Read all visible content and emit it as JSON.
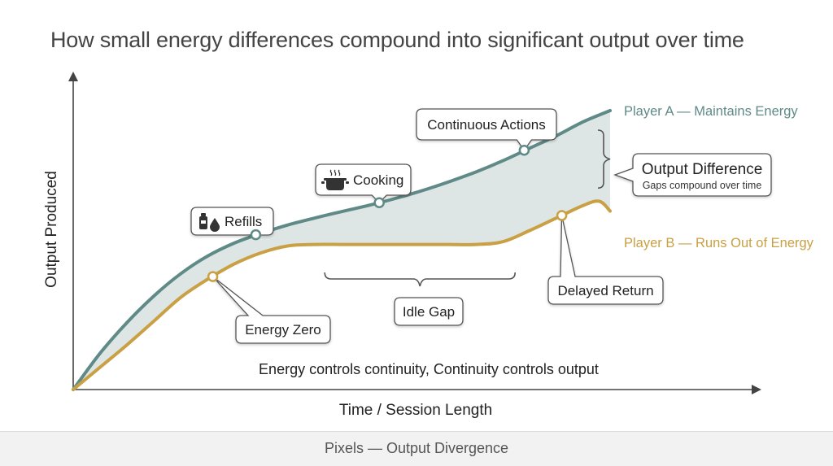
{
  "title": "How small energy differences compound into significant output over time",
  "caption": "Pixels — Output Divergence",
  "chart_data": {
    "type": "line",
    "title": "How small energy differences compound into significant output over time",
    "xlabel": "Time / Session Length",
    "ylabel": "Output Produced",
    "xlim": [
      0,
      100
    ],
    "ylim": [
      0,
      100
    ],
    "grid": false,
    "legend": "right, inline labels",
    "center_note": "Energy controls continuity, Continuity controls output",
    "series": [
      {
        "name": "Player A — Maintains Energy",
        "color": "#5f8a87",
        "x": [
          0,
          5,
          10,
          15,
          20,
          25,
          30,
          35,
          40,
          45,
          50,
          55,
          60,
          65,
          70,
          75,
          80,
          85,
          90,
          95,
          100
        ],
        "y": [
          0,
          13,
          24,
          33.5,
          41.5,
          47.8,
          52.5,
          56,
          59,
          61.5,
          63.8,
          66,
          68.5,
          71.3,
          74.5,
          78,
          82,
          86.5,
          91,
          96,
          100
        ]
      },
      {
        "name": "Player B — Runs Out of Energy",
        "color": "#c9a043",
        "x": [
          0,
          5,
          10,
          15,
          20,
          25,
          30,
          35,
          40,
          45,
          50,
          55,
          60,
          65,
          70,
          75,
          80,
          85,
          90,
          95,
          98,
          100
        ],
        "y": [
          0,
          8,
          16,
          24.5,
          33,
          39.5,
          45,
          49,
          51.5,
          52,
          52,
          52,
          52,
          52,
          52,
          52,
          53,
          57,
          61.5,
          66,
          67.5,
          64
        ]
      }
    ],
    "markers": [
      {
        "series": 0,
        "x": 34,
        "y": 55.5,
        "label": "Refills",
        "icon": "bottle-drop-icon"
      },
      {
        "series": 0,
        "x": 57,
        "y": 67,
        "label": "Cooking",
        "icon": "cooking-pot-icon"
      },
      {
        "series": 0,
        "x": 84,
        "y": 85.8,
        "label": "Continuous Actions",
        "icon": ""
      },
      {
        "series": 1,
        "x": 26,
        "y": 40.5,
        "label": "Energy Zero",
        "icon": ""
      },
      {
        "series": 1,
        "x": 91,
        "y": 62.4,
        "label": "Delayed Return",
        "icon": ""
      }
    ],
    "annotations": [
      {
        "label": "Idle Gap",
        "range_x": [
          47,
          82
        ]
      },
      {
        "label": "Output Difference",
        "sublabel": "Gaps compound over time",
        "x": 100
      }
    ]
  }
}
